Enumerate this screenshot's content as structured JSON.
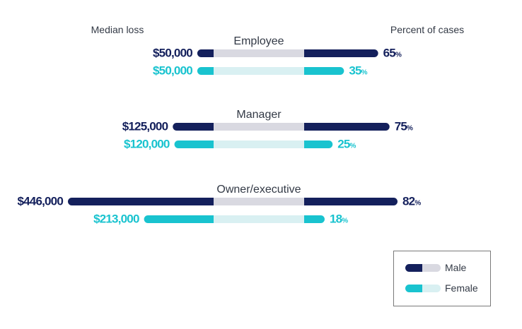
{
  "chart_data": {
    "type": "bar",
    "left_header": "Median loss",
    "right_header": "Percent of cases",
    "categories": [
      "Employee",
      "Manager",
      "Owner/executive"
    ],
    "series": [
      {
        "name": "Male",
        "median_loss": [
          50000,
          125000,
          446000
        ],
        "median_loss_labels": [
          "$50,000",
          "$125,000",
          "$446,000"
        ],
        "percent_of_cases": [
          65,
          75,
          82
        ],
        "percent_labels": [
          "65",
          "75",
          "82"
        ]
      },
      {
        "name": "Female",
        "median_loss": [
          50000,
          120000,
          213000
        ],
        "median_loss_labels": [
          "$50,000",
          "$120,000",
          "$213,000"
        ],
        "percent_of_cases": [
          35,
          25,
          18
        ],
        "percent_labels": [
          "35",
          "25",
          "18"
        ]
      }
    ],
    "percent_suffix": "%",
    "colors": {
      "male": "#14205c",
      "male_track": "#d9d9e1",
      "female": "#19c3cf",
      "female_track": "#d9f0f2"
    },
    "legend_placement": "bottom-right"
  }
}
